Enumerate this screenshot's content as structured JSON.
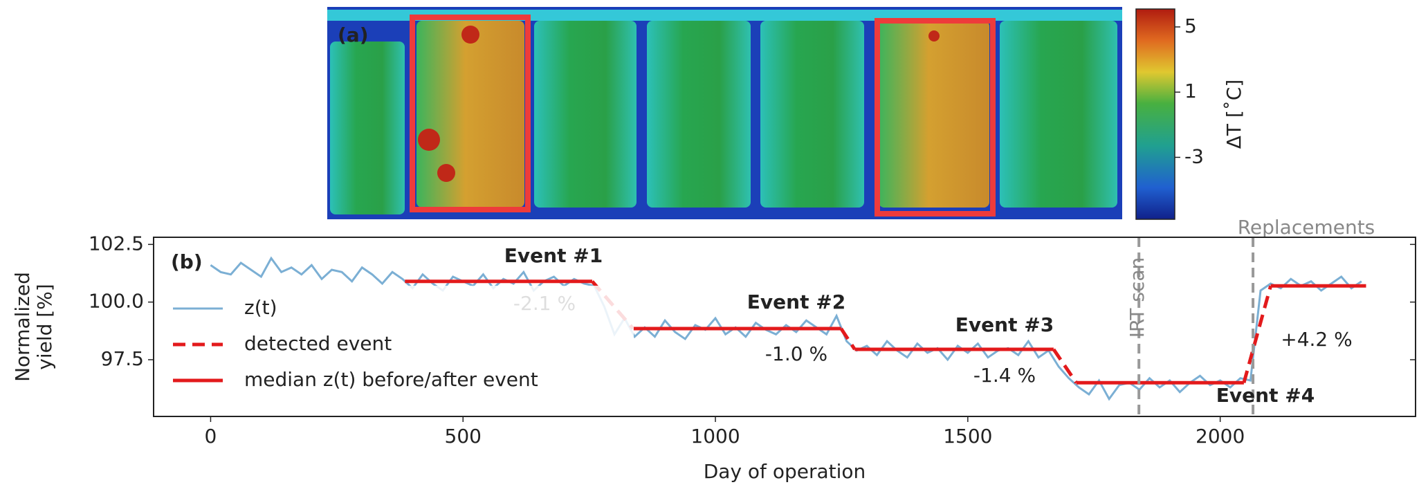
{
  "image_panel": {
    "label": "(a)",
    "colorbar": {
      "label": "ΔT [˚C]",
      "lim": [
        -6.8,
        6.1
      ],
      "ticks": [
        5,
        1,
        -3
      ]
    }
  },
  "chart_data": {
    "type": "line",
    "panel_label": "(b)",
    "xlabel": "Day of operation",
    "ylabel": [
      "Normalized",
      "yield [%]"
    ],
    "xlim": [
      -113,
      2387
    ],
    "ylim": [
      95.04,
      102.81
    ],
    "xticks": [
      0,
      500,
      1000,
      1500,
      2000
    ],
    "yticks": [
      97.5,
      {
        "value": 100,
        "label": "100.0"
      },
      102.5
    ],
    "x": [
      0,
      20,
      40,
      60,
      80,
      100,
      120,
      140,
      160,
      180,
      200,
      220,
      240,
      260,
      280,
      300,
      320,
      340,
      360,
      380,
      400,
      420,
      440,
      460,
      480,
      500,
      520,
      540,
      560,
      580,
      600,
      620,
      640,
      660,
      680,
      700,
      720,
      740,
      760,
      780,
      800,
      820,
      840,
      860,
      880,
      900,
      920,
      940,
      960,
      980,
      1000,
      1020,
      1040,
      1060,
      1080,
      1100,
      1120,
      1140,
      1160,
      1180,
      1200,
      1220,
      1240,
      1260,
      1280,
      1300,
      1320,
      1340,
      1360,
      1380,
      1400,
      1420,
      1440,
      1460,
      1480,
      1500,
      1520,
      1540,
      1560,
      1580,
      1600,
      1620,
      1640,
      1660,
      1680,
      1700,
      1720,
      1740,
      1760,
      1780,
      1800,
      1820,
      1840,
      1860,
      1880,
      1900,
      1920,
      1940,
      1960,
      1980,
      2000,
      2020,
      2040,
      2060,
      2080,
      2100,
      2120,
      2140,
      2160,
      2180,
      2200,
      2220,
      2240,
      2260,
      2280
    ],
    "series": [
      {
        "name": "z(t)",
        "color": "#7bafd4",
        "values": [
          101.6,
          101.3,
          101.2,
          101.7,
          101.4,
          101.1,
          101.9,
          101.3,
          101.5,
          101.2,
          101.6,
          101.0,
          101.4,
          101.3,
          100.9,
          101.5,
          101.2,
          100.8,
          101.3,
          101.0,
          100.6,
          101.2,
          100.8,
          100.5,
          101.1,
          100.9,
          100.7,
          101.2,
          100.6,
          101.0,
          100.8,
          101.3,
          100.5,
          100.9,
          101.1,
          100.7,
          101.0,
          100.8,
          100.7,
          99.8,
          98.6,
          99.3,
          98.5,
          98.9,
          98.5,
          99.2,
          98.7,
          98.4,
          99.0,
          98.8,
          99.3,
          98.6,
          98.9,
          98.5,
          99.1,
          98.8,
          98.6,
          99.0,
          98.7,
          99.2,
          98.9,
          98.6,
          99.4,
          98.3,
          97.9,
          98.1,
          97.7,
          98.3,
          97.9,
          97.6,
          98.2,
          97.8,
          98.0,
          97.5,
          98.1,
          97.8,
          98.2,
          97.6,
          97.9,
          98.0,
          97.7,
          98.3,
          97.6,
          97.9,
          97.2,
          96.7,
          96.3,
          96.0,
          96.6,
          95.8,
          96.4,
          96.5,
          96.2,
          96.7,
          96.3,
          96.6,
          96.1,
          96.5,
          96.8,
          96.4,
          96.6,
          96.3,
          96.7,
          96.6,
          100.5,
          100.8,
          100.6,
          101.0,
          100.7,
          100.9,
          100.5,
          100.8,
          101.1,
          100.6,
          100.9
        ]
      },
      {
        "name": "detected event",
        "color": "#e31a1c",
        "dashed": true,
        "segments": [
          {
            "x": [
              756,
              837
            ],
            "values": [
              100.9,
              98.85
            ]
          },
          {
            "x": [
              1249,
              1276
            ],
            "values": [
              98.85,
              97.95
            ]
          },
          {
            "x": [
              1670,
              1715
            ],
            "values": [
              97.95,
              96.5
            ]
          },
          {
            "x": [
              2047,
              2100
            ],
            "values": [
              96.5,
              100.7
            ]
          }
        ]
      },
      {
        "name": "median z(t) before/after event",
        "color": "#e31a1c",
        "segments": [
          {
            "x": [
              385,
              756
            ],
            "values": [
              100.9,
              100.9
            ]
          },
          {
            "x": [
              837,
              1249
            ],
            "values": [
              98.85,
              98.85
            ]
          },
          {
            "x": [
              1276,
              1670
            ],
            "values": [
              97.95,
              97.95
            ]
          },
          {
            "x": [
              1715,
              2047
            ],
            "values": [
              96.5,
              96.5
            ]
          },
          {
            "x": [
              2100,
              2289
            ],
            "values": [
              100.7,
              100.7
            ]
          }
        ]
      }
    ],
    "vlines": [
      {
        "x": 1839,
        "label": "IRT scan"
      },
      {
        "x": 2065,
        "label": "Replacements"
      }
    ],
    "annotations": [
      "Event #1",
      "-2.1 %",
      "Event #2",
      "-1.0 %",
      "Event #3",
      "-1.4 %",
      "Event #4",
      "+4.2 %"
    ]
  }
}
